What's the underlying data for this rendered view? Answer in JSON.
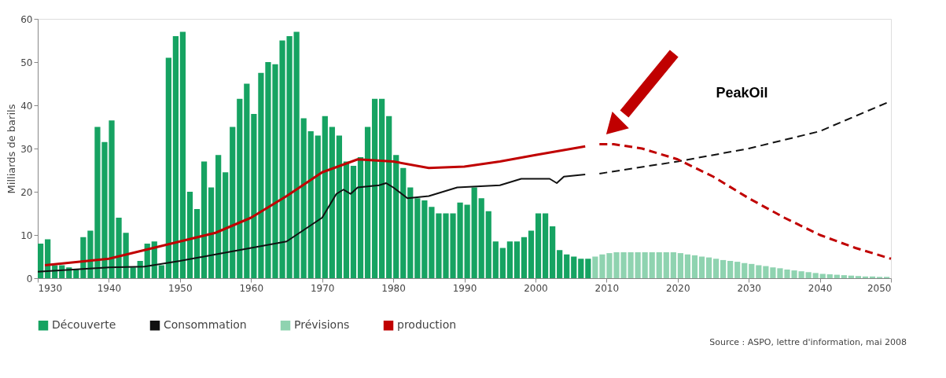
{
  "chart_data": {
    "type": "bar",
    "ylabel": "Milliards de barils",
    "xlim": [
      1930,
      2050
    ],
    "xticks": [
      1930,
      1940,
      1950,
      1960,
      1970,
      1980,
      1990,
      2000,
      2010,
      2020,
      2030,
      2040,
      2050
    ],
    "ylim": [
      0,
      60
    ],
    "yticks": [
      0,
      10,
      20,
      30,
      40,
      50,
      60
    ],
    "grid": false,
    "legend": "bottom",
    "annotations": [
      "PeakOil",
      "Source : ASPO, lettre d'information, mai 2008"
    ],
    "series": [
      {
        "name": "Découverte",
        "color": "#16a362",
        "x": [
          1930,
          1931,
          1932,
          1933,
          1934,
          1935,
          1936,
          1937,
          1938,
          1939,
          1940,
          1941,
          1942,
          1943,
          1944,
          1945,
          1946,
          1947,
          1948,
          1949,
          1950,
          1951,
          1952,
          1953,
          1954,
          1955,
          1956,
          1957,
          1958,
          1959,
          1960,
          1961,
          1962,
          1963,
          1964,
          1965,
          1966,
          1967,
          1968,
          1969,
          1970,
          1971,
          1972,
          1973,
          1974,
          1975,
          1976,
          1977,
          1978,
          1979,
          1980,
          1981,
          1982,
          1983,
          1984,
          1985,
          1986,
          1987,
          1988,
          1989,
          1990,
          1991,
          1992,
          1993,
          1994,
          1995,
          1996,
          1997,
          1998,
          1999,
          2000,
          2001,
          2002,
          2003,
          2004,
          2005,
          2006,
          2007
        ],
        "values": [
          8,
          9,
          3,
          3,
          2.5,
          2,
          9.5,
          11,
          35,
          31.5,
          36.5,
          14,
          10.5,
          2.5,
          4,
          8,
          8.5,
          3,
          51,
          56,
          57,
          20,
          16,
          27,
          21,
          28.5,
          24.5,
          35,
          41.5,
          45,
          38,
          47.5,
          50,
          49.5,
          55,
          56,
          57,
          37,
          34,
          33,
          37.5,
          35,
          33,
          27,
          26,
          28,
          35,
          41.5,
          41.5,
          37.5,
          28.5,
          25.5,
          21,
          18.5,
          18,
          16.5,
          15,
          15,
          15,
          17.5,
          17,
          21,
          18.5,
          15.5,
          8.5,
          7,
          8.5,
          8.5,
          9.5,
          11,
          15,
          15,
          12,
          6.5,
          5.5,
          5,
          4.5,
          4.5
        ]
      },
      {
        "name": "Consommation",
        "type": "line",
        "line_style": "solid",
        "color": "#111111",
        "x": [
          1930,
          1935,
          1940,
          1945,
          1950,
          1955,
          1960,
          1965,
          1970,
          1972,
          1973,
          1974,
          1975,
          1978,
          1979,
          1980,
          1982,
          1985,
          1989,
          1995,
          1998,
          2000,
          2002,
          2003,
          2004,
          2007
        ],
        "values": [
          1.5,
          2,
          2.5,
          2.7,
          4,
          5.5,
          7,
          8.5,
          14,
          19.5,
          20.5,
          19.5,
          21,
          21.5,
          22,
          21,
          18.5,
          19,
          21,
          21.5,
          23,
          23,
          23,
          22,
          23.5,
          24
        ]
      },
      {
        "name": "Prévisions",
        "color": "#8fd3b0",
        "x": [
          2008,
          2009,
          2010,
          2011,
          2012,
          2013,
          2014,
          2015,
          2016,
          2017,
          2018,
          2019,
          2020,
          2021,
          2022,
          2023,
          2024,
          2025,
          2026,
          2027,
          2028,
          2029,
          2030,
          2031,
          2032,
          2033,
          2034,
          2035,
          2036,
          2037,
          2038,
          2039,
          2040,
          2041,
          2042,
          2043,
          2044,
          2045,
          2046,
          2047,
          2048,
          2049
        ],
        "values": [
          5,
          5.5,
          5.8,
          6,
          6,
          6,
          6,
          6,
          6,
          6,
          6,
          6,
          5.8,
          5.5,
          5.3,
          5,
          4.8,
          4.5,
          4.2,
          4,
          3.8,
          3.5,
          3.3,
          3,
          2.8,
          2.5,
          2.3,
          2,
          1.8,
          1.6,
          1.4,
          1.2,
          1,
          0.9,
          0.8,
          0.7,
          0.6,
          0.5,
          0.4,
          0.4,
          0.3,
          0.3
        ]
      },
      {
        "name": "production",
        "type": "line",
        "line_style": "solid",
        "color": "#c00000",
        "x": [
          1931,
          1940,
          1950,
          1955,
          1960,
          1965,
          1970,
          1975,
          1980,
          1985,
          1990,
          1995,
          2000,
          2007
        ],
        "values": [
          3,
          4.5,
          8.5,
          10.5,
          14,
          19,
          24.5,
          27.5,
          27,
          25.5,
          25.8,
          27,
          28.5,
          30.5
        ]
      },
      {
        "type": "line",
        "color": "#111111",
        "line_style": "dashed",
        "x": [
          2009,
          2020,
          2030,
          2040,
          2050
        ],
        "values": [
          24.2,
          27,
          30,
          34,
          41
        ]
      },
      {
        "type": "line",
        "color": "#c00000",
        "line_style": "dashed",
        "x": [
          2009,
          2011,
          2015,
          2020,
          2025,
          2030,
          2035,
          2040,
          2045,
          2050
        ],
        "values": [
          31,
          31,
          30,
          27.5,
          23.5,
          18.5,
          14,
          10,
          7,
          4.5
        ]
      }
    ]
  }
}
